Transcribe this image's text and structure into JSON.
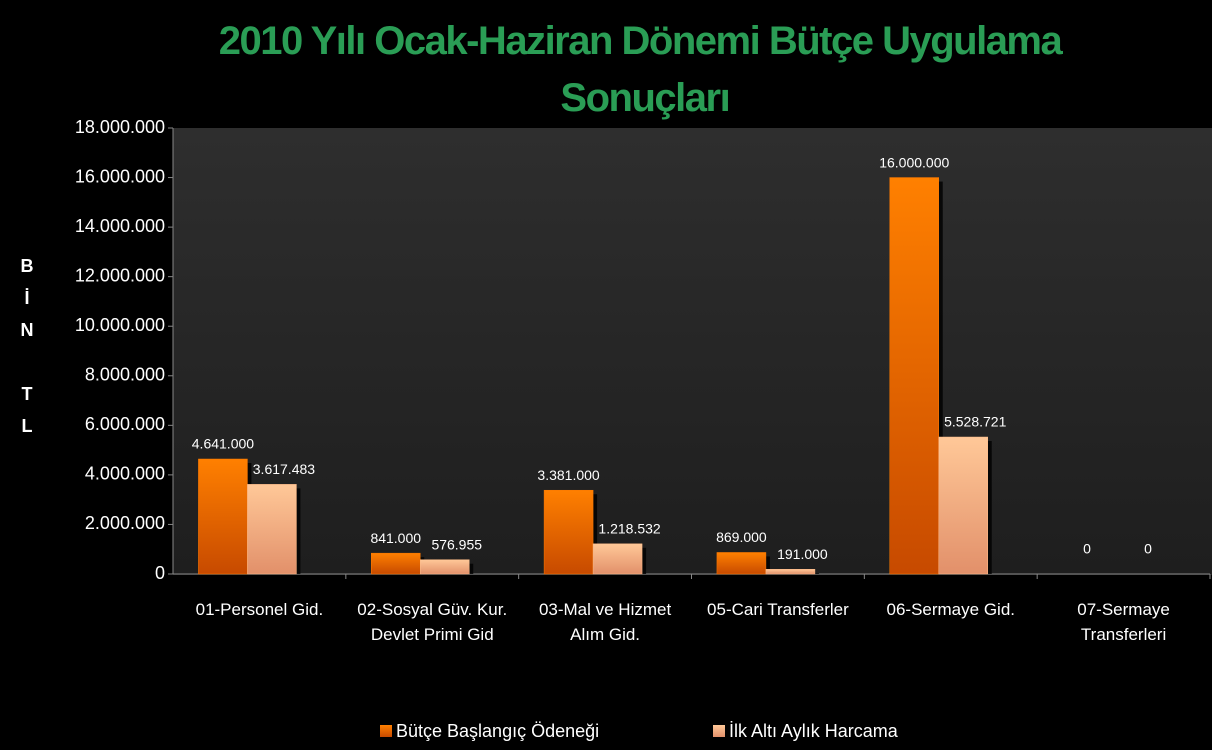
{
  "chart_data": {
    "type": "bar",
    "title": "2010 Yılı Ocak-Haziran Dönemi Bütçe Uygulama Sonuçları",
    "y_label": "BİN TL",
    "categories": [
      "01-Personel Gid.",
      "02-Sosyal Güv. Kur. Devlet Primi Gid",
      "03-Mal ve Hizmet Alım Gid.",
      "05-Cari Transferler",
      "06-Sermaye Gid.",
      "07-Sermaye Transferleri"
    ],
    "series": [
      {
        "name": "Bütçe Başlangıç Ödeneği",
        "color": "#ff7a00",
        "values": [
          4641000,
          841000,
          3381000,
          869000,
          16000000,
          0
        ],
        "value_labels": [
          "4.641.000",
          "841.000",
          "3.381.000",
          "869.000",
          "16.000.000",
          "0"
        ]
      },
      {
        "name": "İlk Altı Aylık Harcama",
        "color": "#ffbb88",
        "values": [
          3617483,
          576955,
          1218532,
          191000,
          5528721,
          0
        ],
        "value_labels": [
          "3.617.483",
          "576.955",
          "1.218.532",
          "191.000",
          "5.528.721",
          "0"
        ]
      }
    ],
    "ylim": [
      0,
      18000000
    ],
    "yticks": [
      0,
      {
        "value": 2000000,
        "label": "2.000.000"
      },
      {
        "value": 4000000,
        "label": "4.000.000"
      },
      {
        "value": 6000000,
        "label": "6.000.000"
      },
      {
        "value": 8000000,
        "label": "8.000.000"
      },
      {
        "value": 10000000,
        "label": "10.000.000"
      },
      {
        "value": 12000000,
        "label": "12.000.000"
      },
      {
        "value": 14000000,
        "label": "14.000.000"
      },
      {
        "value": 16000000,
        "label": "16.000.000"
      },
      {
        "value": 18000000,
        "label": "18.000.000"
      }
    ],
    "legend": "bottom"
  }
}
